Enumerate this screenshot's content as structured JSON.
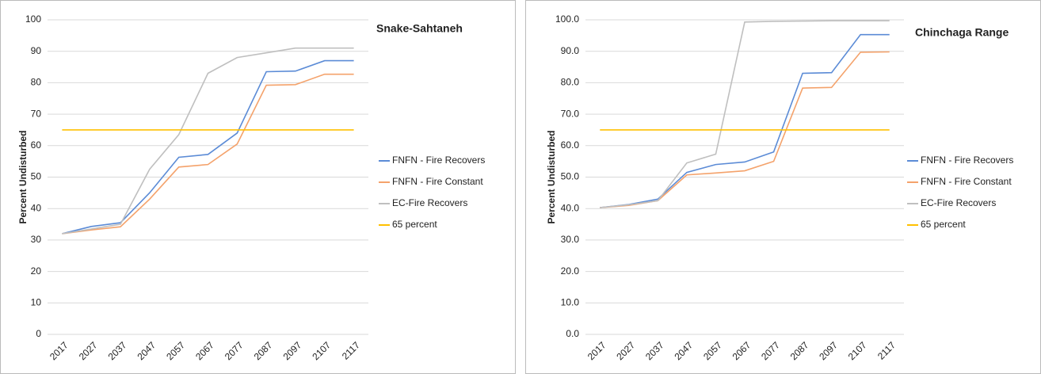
{
  "chart_data": [
    {
      "type": "line",
      "title": "Snake-Sahtaneh",
      "y_label": "Percent Undisturbed",
      "categories": [
        "2017",
        "2027",
        "2037",
        "2047",
        "2057",
        "2067",
        "2077",
        "2087",
        "2097",
        "2107",
        "2117"
      ],
      "series": [
        {
          "name": "FNFN - Fire Recovers",
          "color": "#5b8bd6",
          "values": [
            32,
            34.3,
            35.5,
            45,
            56.3,
            57.2,
            64,
            83.5,
            83.7,
            87,
            87
          ]
        },
        {
          "name": "FNFN - Fire Constant",
          "color": "#f4a26b",
          "values": [
            32,
            33.2,
            34.2,
            43,
            53.2,
            54,
            60.5,
            79.2,
            79.4,
            82.7,
            82.7
          ]
        },
        {
          "name": "EC-Fire Recovers",
          "color": "#bfbfbf",
          "values": [
            32,
            33.5,
            35,
            52.5,
            63.5,
            83,
            88,
            89.5,
            91,
            91,
            91
          ]
        },
        {
          "name": "65 percent",
          "color": "#ffc000",
          "values": [
            65,
            65,
            65,
            65,
            65,
            65,
            65,
            65,
            65,
            65,
            65
          ]
        }
      ],
      "ylim": [
        0,
        100
      ],
      "yticks": [
        0,
        10,
        20,
        30,
        40,
        50,
        60,
        70,
        80,
        90,
        100
      ],
      "grid": true,
      "legend": "right"
    },
    {
      "type": "line",
      "title": "Chinchaga Range",
      "y_label": "Percent Undisturbed",
      "categories": [
        "2017",
        "2027",
        "2037",
        "2047",
        "2057",
        "2067",
        "2077",
        "2087",
        "2097",
        "2107",
        "2117"
      ],
      "series": [
        {
          "name": "FNFN - Fire Recovers",
          "color": "#5b8bd6",
          "values": [
            40.3,
            41.3,
            43,
            51.5,
            54,
            54.8,
            58,
            83,
            83.2,
            95.3,
            95.3
          ]
        },
        {
          "name": "FNFN - Fire Constant",
          "color": "#f4a26b",
          "values": [
            40.3,
            41,
            42.5,
            50.7,
            51.3,
            52,
            55,
            78.3,
            78.5,
            89.7,
            89.8
          ]
        },
        {
          "name": "EC-Fire Recovers",
          "color": "#bfbfbf",
          "values": [
            40.3,
            41.2,
            42.5,
            54.5,
            57.3,
            99.3,
            99.5,
            99.6,
            99.7,
            99.7,
            99.7
          ]
        },
        {
          "name": "65 percent",
          "color": "#ffc000",
          "values": [
            65,
            65,
            65,
            65,
            65,
            65,
            65,
            65,
            65,
            65,
            65
          ]
        }
      ],
      "ylim": [
        0,
        100
      ],
      "yticks": [
        {
          "value": 0,
          "label": "0.0"
        },
        {
          "value": 10,
          "label": "10.0"
        },
        {
          "value": 20,
          "label": "20.0"
        },
        {
          "value": 30,
          "label": "30.0"
        },
        {
          "value": 40,
          "label": "40.0"
        },
        {
          "value": 50,
          "label": "50.0"
        },
        {
          "value": 60,
          "label": "60.0"
        },
        {
          "value": 70,
          "label": "70.0"
        },
        {
          "value": 80,
          "label": "80.0"
        },
        {
          "value": 90,
          "label": "90.0"
        },
        {
          "value": 100,
          "label": "100.0"
        }
      ],
      "grid": true,
      "legend": "right"
    }
  ]
}
